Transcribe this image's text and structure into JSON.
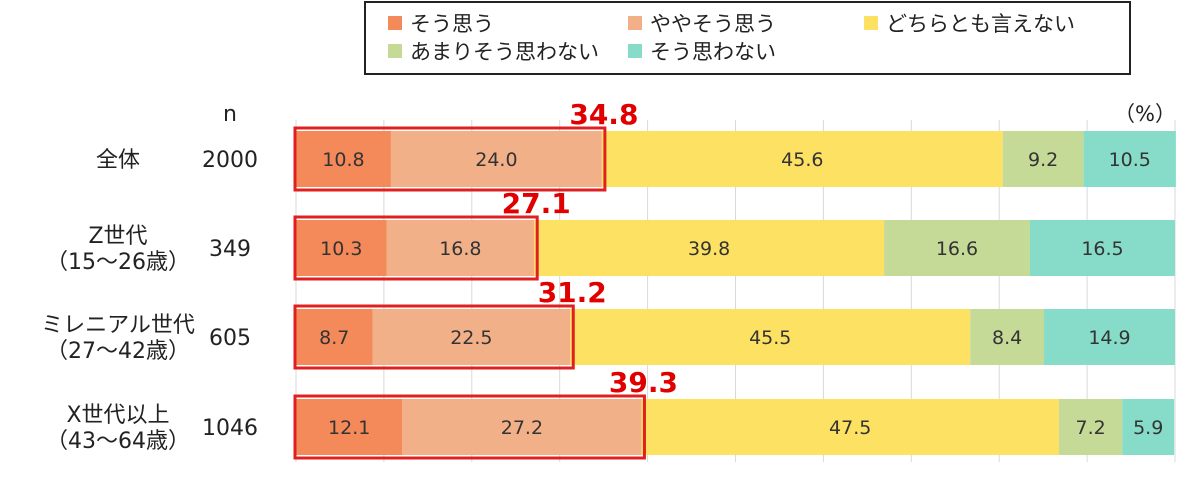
{
  "chart_data": {
    "type": "bar",
    "orientation": "horizontal",
    "stacked": true,
    "unit_label": "（%）",
    "n_header": "n",
    "xlim": [
      0,
      100
    ],
    "grid": true,
    "legend_position": "top",
    "categories": [
      {
        "label_lines": [
          "全体"
        ],
        "n": "2000",
        "highlight_total": "34.8"
      },
      {
        "label_lines": [
          "Z世代",
          "（15〜26歳）"
        ],
        "n": "349",
        "highlight_total": "27.1"
      },
      {
        "label_lines": [
          "ミレニアル世代",
          "（27〜42歳）"
        ],
        "n": "605",
        "highlight_total": "31.2"
      },
      {
        "label_lines": [
          "X世代以上",
          "（43〜64歳）"
        ],
        "n": "1046",
        "highlight_total": "39.3"
      }
    ],
    "series": [
      {
        "name": "そう思う",
        "color": "#f4895a",
        "values": [
          10.8,
          10.3,
          8.7,
          12.1
        ]
      },
      {
        "name": "ややそう思う",
        "color": "#f2b089",
        "values": [
          24.0,
          16.8,
          22.5,
          27.2
        ]
      },
      {
        "name": "どちらとも言えない",
        "color": "#fde163",
        "values": [
          45.6,
          39.8,
          45.5,
          47.5
        ]
      },
      {
        "name": "あまりそう思わない",
        "color": "#c6da98",
        "values": [
          9.2,
          16.6,
          8.4,
          7.2
        ]
      },
      {
        "name": "そう思わない",
        "color": "#86dcc8",
        "values": [
          10.5,
          16.5,
          14.9,
          5.9
        ]
      }
    ],
    "highlight_color": "#e02020"
  }
}
